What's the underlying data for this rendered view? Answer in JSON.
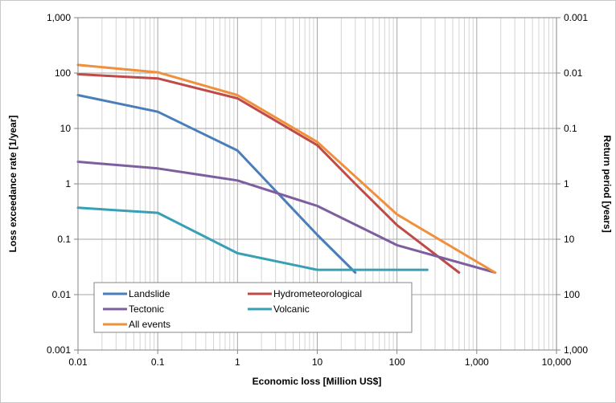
{
  "chart_data": {
    "type": "line",
    "xscale": "log",
    "yscale": "log",
    "xlabel": "Economic loss [Million US$]",
    "ylabel": "Loss exceedance rate [1/year]",
    "y2label": "Return period [years]",
    "xlim": [
      0.01,
      10000
    ],
    "ylim": [
      0.001,
      1000
    ],
    "grid": true,
    "legend_position": "bottom-left",
    "x_ticks": [
      "0.01",
      "0.1",
      "1",
      "10",
      "100",
      "1,000",
      "10,000"
    ],
    "y_ticks": [
      "0.001",
      "0.01",
      "0.1",
      "1",
      "10",
      "100",
      "1,000"
    ],
    "y2_ticks": [
      "1,000",
      "100",
      "10",
      "1",
      "0.1",
      "0.01",
      "0.001"
    ],
    "series": [
      {
        "name": "Landslide",
        "color": "#4a7ebb",
        "points": [
          [
            0.01,
            40
          ],
          [
            0.1,
            20
          ],
          [
            1,
            4
          ],
          [
            10,
            0.12
          ],
          [
            30,
            0.025
          ]
        ]
      },
      {
        "name": "Hydrometeorological",
        "color": "#be4b48",
        "points": [
          [
            0.01,
            95
          ],
          [
            0.1,
            80
          ],
          [
            1,
            35
          ],
          [
            10,
            5
          ],
          [
            30,
            1
          ],
          [
            100,
            0.18
          ],
          [
            600,
            0.025
          ]
        ]
      },
      {
        "name": "Tectonic",
        "color": "#7d5fa0",
        "points": [
          [
            0.01,
            2.5
          ],
          [
            0.1,
            1.9
          ],
          [
            1,
            1.15
          ],
          [
            10,
            0.4
          ],
          [
            100,
            0.078
          ],
          [
            1700,
            0.025
          ]
        ]
      },
      {
        "name": "Volcanic",
        "color": "#37a0b4",
        "points": [
          [
            0.01,
            0.37
          ],
          [
            0.1,
            0.3
          ],
          [
            1,
            0.056
          ],
          [
            10,
            0.028
          ],
          [
            240,
            0.028
          ]
        ]
      },
      {
        "name": "All events",
        "color": "#f0903c",
        "points": [
          [
            0.01,
            140
          ],
          [
            0.1,
            103
          ],
          [
            1,
            40
          ],
          [
            10,
            5.7
          ],
          [
            100,
            0.28
          ],
          [
            1700,
            0.025
          ]
        ]
      }
    ]
  }
}
